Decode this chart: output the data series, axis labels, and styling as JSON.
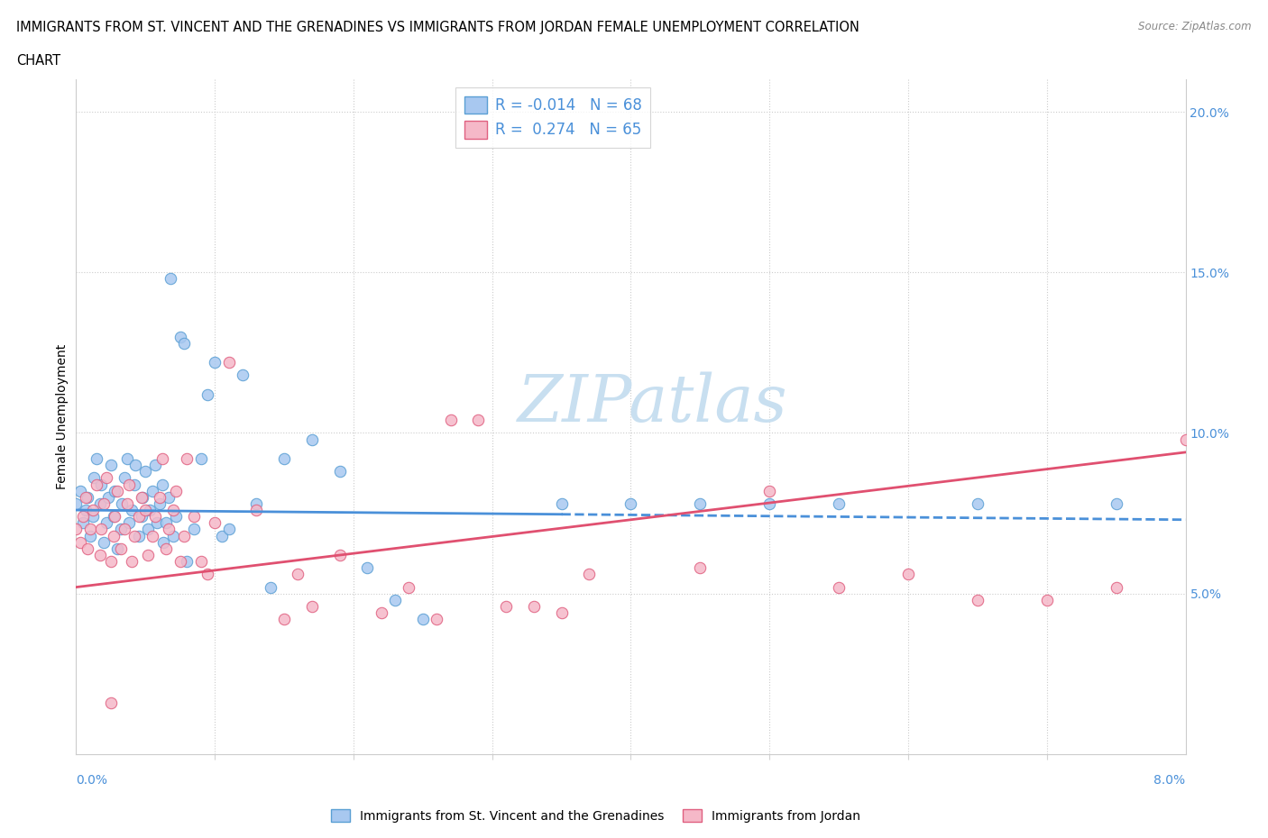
{
  "title_line1": "IMMIGRANTS FROM ST. VINCENT AND THE GRENADINES VS IMMIGRANTS FROM JORDAN FEMALE UNEMPLOYMENT CORRELATION",
  "title_line2": "CHART",
  "source": "Source: ZipAtlas.com",
  "ylabel": "Female Unemployment",
  "xlim": [
    0.0,
    8.0
  ],
  "ylim": [
    0.0,
    21.0
  ],
  "yticks": [
    5.0,
    10.0,
    15.0,
    20.0
  ],
  "blue_color": "#a8c8f0",
  "blue_edge": "#5a9fd4",
  "pink_color": "#f5b8c8",
  "pink_edge": "#e06080",
  "trend_blue_color": "#4a90d9",
  "trend_pink_color": "#e05070",
  "watermark_color": "#c8dff0",
  "blue_scatter_x": [
    0.0,
    0.03,
    0.05,
    0.07,
    0.08,
    0.1,
    0.12,
    0.13,
    0.15,
    0.17,
    0.18,
    0.2,
    0.22,
    0.23,
    0.25,
    0.27,
    0.28,
    0.3,
    0.32,
    0.33,
    0.35,
    0.37,
    0.38,
    0.4,
    0.42,
    0.43,
    0.45,
    0.47,
    0.48,
    0.5,
    0.52,
    0.53,
    0.55,
    0.57,
    0.58,
    0.6,
    0.62,
    0.63,
    0.65,
    0.67,
    0.68,
    0.7,
    0.72,
    0.75,
    0.78,
    0.8,
    0.85,
    0.9,
    0.95,
    1.0,
    1.05,
    1.1,
    1.2,
    1.3,
    1.4,
    1.5,
    1.7,
    1.9,
    2.1,
    2.3,
    2.5,
    3.5,
    4.0,
    4.5,
    5.0,
    5.5,
    6.5,
    7.5
  ],
  "blue_scatter_y": [
    7.8,
    8.2,
    7.2,
    7.6,
    8.0,
    6.8,
    7.4,
    8.6,
    9.2,
    7.8,
    8.4,
    6.6,
    7.2,
    8.0,
    9.0,
    7.4,
    8.2,
    6.4,
    7.0,
    7.8,
    8.6,
    9.2,
    7.2,
    7.6,
    8.4,
    9.0,
    6.8,
    7.4,
    8.0,
    8.8,
    7.0,
    7.6,
    8.2,
    9.0,
    7.2,
    7.8,
    8.4,
    6.6,
    7.2,
    8.0,
    14.8,
    6.8,
    7.4,
    13.0,
    12.8,
    6.0,
    7.0,
    9.2,
    11.2,
    12.2,
    6.8,
    7.0,
    11.8,
    7.8,
    5.2,
    9.2,
    9.8,
    8.8,
    5.8,
    4.8,
    4.2,
    7.8,
    7.8,
    7.8,
    7.8,
    7.8,
    7.8,
    7.8
  ],
  "pink_scatter_x": [
    0.0,
    0.03,
    0.05,
    0.07,
    0.08,
    0.1,
    0.12,
    0.15,
    0.17,
    0.18,
    0.2,
    0.22,
    0.25,
    0.27,
    0.28,
    0.3,
    0.32,
    0.35,
    0.37,
    0.38,
    0.4,
    0.42,
    0.45,
    0.47,
    0.5,
    0.52,
    0.55,
    0.57,
    0.6,
    0.62,
    0.65,
    0.67,
    0.7,
    0.72,
    0.75,
    0.78,
    0.8,
    0.85,
    0.9,
    0.95,
    1.0,
    1.1,
    1.3,
    1.5,
    1.6,
    1.7,
    1.9,
    2.2,
    2.4,
    2.6,
    2.7,
    2.9,
    3.1,
    3.3,
    3.5,
    3.7,
    4.5,
    5.0,
    5.5,
    6.0,
    6.5,
    7.0,
    7.5,
    8.0,
    0.25
  ],
  "pink_scatter_y": [
    7.0,
    6.6,
    7.4,
    8.0,
    6.4,
    7.0,
    7.6,
    8.4,
    6.2,
    7.0,
    7.8,
    8.6,
    6.0,
    6.8,
    7.4,
    8.2,
    6.4,
    7.0,
    7.8,
    8.4,
    6.0,
    6.8,
    7.4,
    8.0,
    7.6,
    6.2,
    6.8,
    7.4,
    8.0,
    9.2,
    6.4,
    7.0,
    7.6,
    8.2,
    6.0,
    6.8,
    9.2,
    7.4,
    6.0,
    5.6,
    7.2,
    12.2,
    7.6,
    4.2,
    5.6,
    4.6,
    6.2,
    4.4,
    5.2,
    4.2,
    10.4,
    10.4,
    4.6,
    4.6,
    4.4,
    5.6,
    5.8,
    8.2,
    5.2,
    5.6,
    4.8,
    4.8,
    5.2,
    9.8,
    1.6
  ],
  "blue_trend_x": [
    0.0,
    8.0
  ],
  "blue_trend_y": [
    7.6,
    7.3
  ],
  "pink_trend_x": [
    0.0,
    8.0
  ],
  "pink_trend_y": [
    5.2,
    9.4
  ],
  "blue_solid_end_x": 3.8,
  "legend_label1": "R = -0.014   N = 68",
  "legend_label2": "R =  0.274   N = 65",
  "bottom_label1": "Immigrants from St. Vincent and the Grenadines",
  "bottom_label2": "Immigrants from Jordan"
}
